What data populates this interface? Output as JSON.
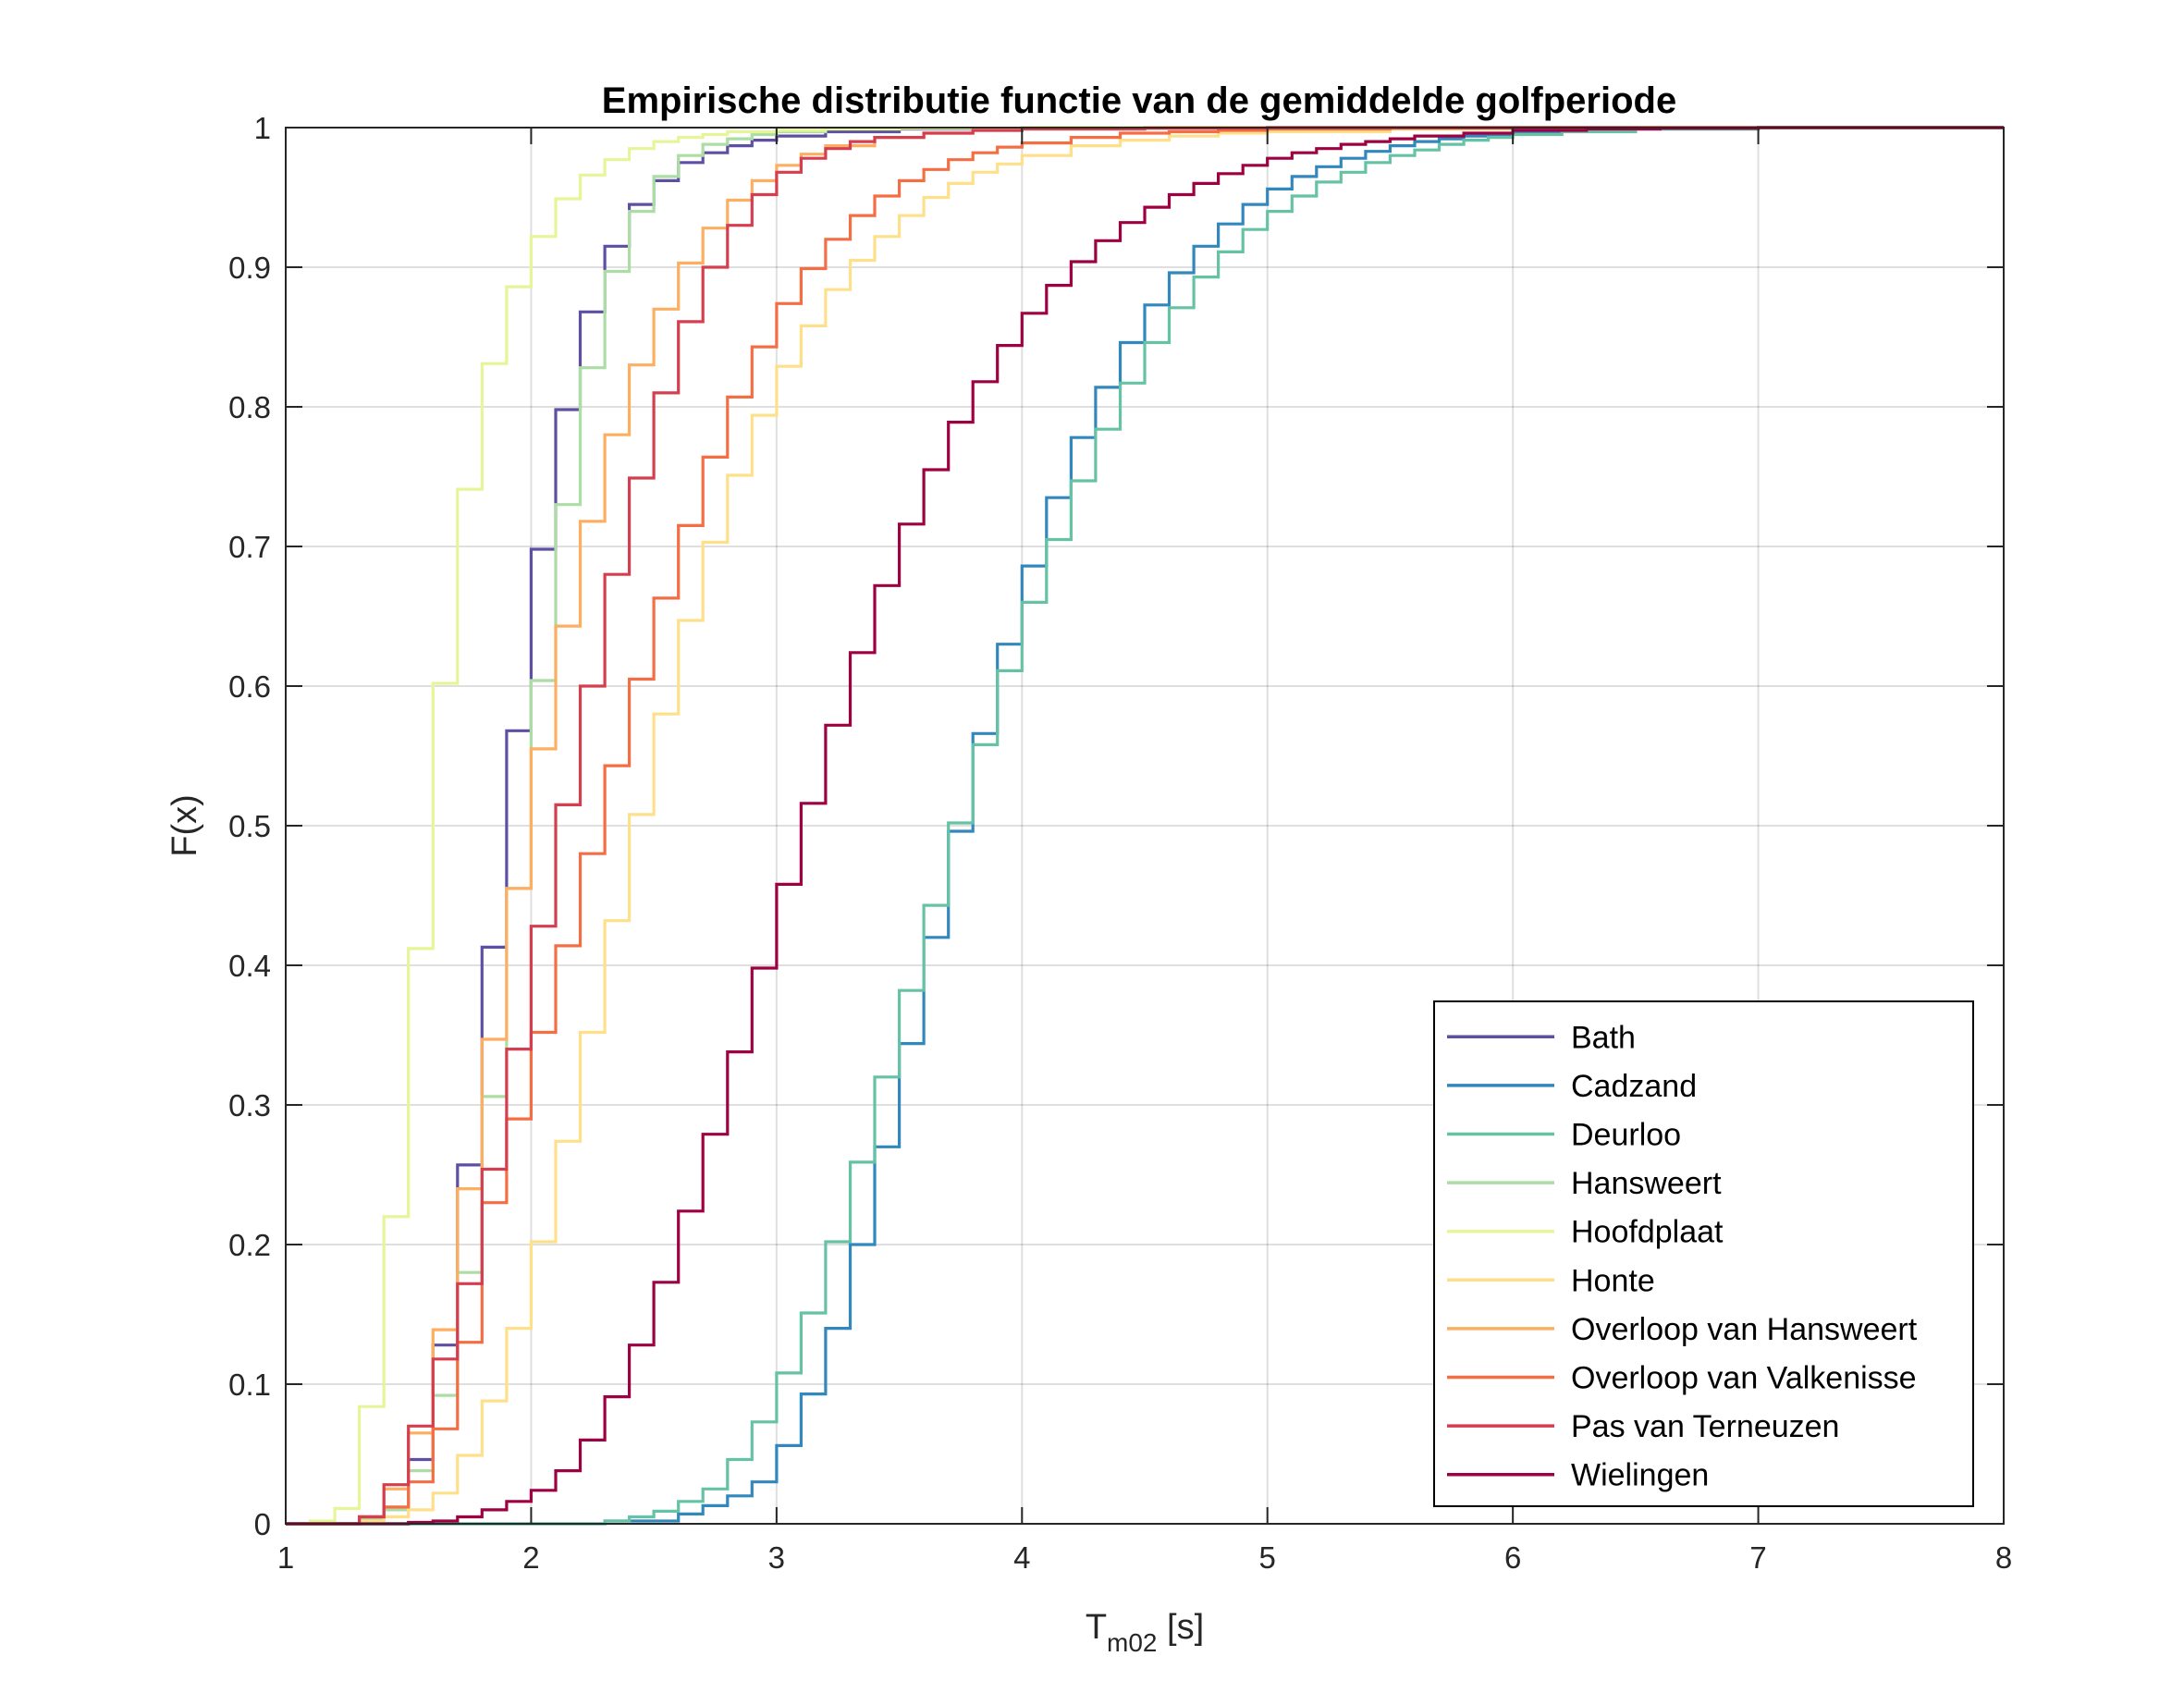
{
  "chart_data": {
    "type": "line",
    "step": true,
    "title": "Empirische distributie functie van de gemiddelde golfperiode",
    "xlabel": {
      "main": "T",
      "subscript": "m02",
      "suffix": " [s]"
    },
    "ylabel": "F(x)",
    "xlim": [
      1,
      8
    ],
    "ylim": [
      0,
      1
    ],
    "xticks": [
      "1",
      "2",
      "3",
      "4",
      "5",
      "6",
      "7",
      "8"
    ],
    "yticks": [
      "0",
      "0.1",
      "0.2",
      "0.3",
      "0.4",
      "0.5",
      "0.6",
      "0.7",
      "0.8",
      "0.9",
      "1"
    ],
    "grid": true,
    "legend_position": "bottom-right",
    "colors": {
      "Bath": "#5e4fa2",
      "Cadzand": "#3288bd",
      "Deurloo": "#66c2a5",
      "Hansweert": "#abdda4",
      "Hoofdplaat": "#e6f598",
      "Honte": "#fee08b",
      "Overloop van Hansweert": "#fdae61",
      "Overloop van Valkenisse": "#f46d43",
      "Pas van Terneuzen": "#d53e4f",
      "Wielingen": "#9e0142"
    },
    "series": [
      {
        "name": "Bath",
        "x": [
          1.0,
          1.3,
          1.4,
          1.5,
          1.6,
          1.7,
          1.8,
          1.9,
          2.0,
          2.1,
          2.2,
          2.3,
          2.4,
          2.5,
          2.6,
          2.7,
          2.8,
          2.9,
          3.0,
          3.2,
          3.5,
          4.0,
          8.0
        ],
        "y": [
          0,
          0.005,
          0.01,
          0.046,
          0.128,
          0.257,
          0.413,
          0.568,
          0.698,
          0.798,
          0.868,
          0.915,
          0.945,
          0.962,
          0.975,
          0.982,
          0.987,
          0.991,
          0.994,
          0.997,
          0.999,
          1.0,
          1.0
        ]
      },
      {
        "name": "Cadzand",
        "x": [
          1.0,
          2.0,
          2.3,
          2.6,
          2.7,
          2.8,
          2.9,
          3.0,
          3.1,
          3.2,
          3.3,
          3.4,
          3.5,
          3.6,
          3.7,
          3.8,
          3.9,
          4.0,
          4.1,
          4.2,
          4.3,
          4.4,
          4.5,
          4.6,
          4.7,
          4.8,
          4.9,
          5.0,
          5.1,
          5.2,
          5.3,
          5.4,
          5.5,
          5.6,
          5.7,
          5.8,
          5.9,
          6.0,
          6.2,
          6.5,
          7.0,
          8.0
        ],
        "y": [
          0,
          0,
          0.002,
          0.007,
          0.013,
          0.02,
          0.03,
          0.056,
          0.093,
          0.14,
          0.2,
          0.27,
          0.344,
          0.42,
          0.496,
          0.566,
          0.63,
          0.686,
          0.735,
          0.778,
          0.814,
          0.846,
          0.873,
          0.896,
          0.915,
          0.931,
          0.945,
          0.956,
          0.965,
          0.972,
          0.978,
          0.983,
          0.987,
          0.99,
          0.992,
          0.994,
          0.995,
          0.997,
          0.998,
          0.999,
          1.0,
          1.0
        ]
      },
      {
        "name": "Deurloo",
        "x": [
          1.0,
          2.0,
          2.3,
          2.4,
          2.5,
          2.6,
          2.7,
          2.8,
          2.9,
          3.0,
          3.1,
          3.2,
          3.3,
          3.4,
          3.5,
          3.6,
          3.7,
          3.8,
          3.9,
          4.0,
          4.1,
          4.2,
          4.3,
          4.4,
          4.5,
          4.6,
          4.7,
          4.8,
          4.9,
          5.0,
          5.1,
          5.2,
          5.3,
          5.4,
          5.5,
          5.6,
          5.7,
          5.8,
          5.9,
          6.0,
          6.2,
          6.5,
          7.0,
          8.0
        ],
        "y": [
          0,
          0,
          0.002,
          0.005,
          0.009,
          0.016,
          0.025,
          0.046,
          0.073,
          0.108,
          0.151,
          0.202,
          0.259,
          0.32,
          0.382,
          0.443,
          0.502,
          0.558,
          0.611,
          0.66,
          0.705,
          0.747,
          0.784,
          0.817,
          0.846,
          0.871,
          0.893,
          0.911,
          0.927,
          0.94,
          0.951,
          0.961,
          0.968,
          0.975,
          0.98,
          0.984,
          0.988,
          0.991,
          0.993,
          0.995,
          0.997,
          0.999,
          1.0,
          1.0
        ]
      },
      {
        "name": "Hansweert",
        "x": [
          1.0,
          1.3,
          1.4,
          1.5,
          1.6,
          1.7,
          1.8,
          1.9,
          2.0,
          2.1,
          2.2,
          2.3,
          2.4,
          2.5,
          2.6,
          2.7,
          2.8,
          2.9,
          3.0,
          3.2,
          3.5,
          4.0,
          8.0
        ],
        "y": [
          0,
          0.003,
          0.01,
          0.038,
          0.092,
          0.18,
          0.306,
          0.455,
          0.604,
          0.73,
          0.828,
          0.897,
          0.94,
          0.965,
          0.98,
          0.988,
          0.992,
          0.995,
          0.997,
          0.999,
          0.9995,
          1.0,
          1.0
        ]
      },
      {
        "name": "Hoofdplaat",
        "x": [
          1.0,
          1.1,
          1.2,
          1.3,
          1.4,
          1.5,
          1.6,
          1.7,
          1.8,
          1.9,
          2.0,
          2.1,
          2.2,
          2.3,
          2.4,
          2.5,
          2.6,
          2.7,
          2.8,
          3.0,
          3.2,
          3.5,
          4.0,
          8.0
        ],
        "y": [
          0,
          0.002,
          0.011,
          0.084,
          0.22,
          0.412,
          0.602,
          0.741,
          0.831,
          0.886,
          0.922,
          0.949,
          0.966,
          0.977,
          0.985,
          0.99,
          0.993,
          0.995,
          0.997,
          0.998,
          0.999,
          0.9995,
          1.0,
          1.0
        ]
      },
      {
        "name": "Honte",
        "x": [
          1.0,
          1.3,
          1.4,
          1.5,
          1.6,
          1.7,
          1.8,
          1.9,
          2.0,
          2.1,
          2.2,
          2.3,
          2.4,
          2.5,
          2.6,
          2.7,
          2.8,
          2.9,
          3.0,
          3.1,
          3.2,
          3.3,
          3.4,
          3.5,
          3.6,
          3.7,
          3.8,
          3.9,
          4.0,
          4.2,
          4.4,
          4.6,
          4.8,
          5.0,
          5.5,
          6.0,
          8.0
        ],
        "y": [
          0,
          0.002,
          0.005,
          0.01,
          0.022,
          0.049,
          0.088,
          0.14,
          0.202,
          0.274,
          0.352,
          0.432,
          0.508,
          0.58,
          0.647,
          0.703,
          0.751,
          0.794,
          0.829,
          0.858,
          0.884,
          0.905,
          0.922,
          0.937,
          0.95,
          0.96,
          0.968,
          0.974,
          0.98,
          0.987,
          0.991,
          0.994,
          0.996,
          0.997,
          0.999,
          1.0,
          1.0
        ]
      },
      {
        "name": "Overloop van Hansweert",
        "x": [
          1.0,
          1.3,
          1.4,
          1.5,
          1.6,
          1.7,
          1.8,
          1.9,
          2.0,
          2.1,
          2.2,
          2.3,
          2.4,
          2.5,
          2.6,
          2.7,
          2.8,
          2.9,
          3.0,
          3.1,
          3.2,
          3.4,
          3.6,
          3.8,
          4.0,
          4.5,
          8.0
        ],
        "y": [
          0,
          0.005,
          0.025,
          0.065,
          0.139,
          0.24,
          0.347,
          0.455,
          0.555,
          0.643,
          0.718,
          0.78,
          0.83,
          0.87,
          0.903,
          0.928,
          0.948,
          0.962,
          0.973,
          0.981,
          0.987,
          0.993,
          0.996,
          0.998,
          0.999,
          1.0,
          1.0
        ]
      },
      {
        "name": "Overloop van Valkenisse",
        "x": [
          1.0,
          1.3,
          1.4,
          1.5,
          1.6,
          1.7,
          1.8,
          1.9,
          2.0,
          2.1,
          2.2,
          2.3,
          2.4,
          2.5,
          2.6,
          2.7,
          2.8,
          2.9,
          3.0,
          3.1,
          3.2,
          3.3,
          3.4,
          3.5,
          3.6,
          3.7,
          3.8,
          3.9,
          4.0,
          4.2,
          4.4,
          4.6,
          4.8,
          5.0,
          5.5,
          6.0,
          8.0
        ],
        "y": [
          0,
          0.005,
          0.012,
          0.03,
          0.068,
          0.13,
          0.23,
          0.29,
          0.352,
          0.414,
          0.48,
          0.543,
          0.605,
          0.663,
          0.715,
          0.764,
          0.807,
          0.843,
          0.874,
          0.899,
          0.92,
          0.937,
          0.951,
          0.962,
          0.97,
          0.977,
          0.982,
          0.986,
          0.989,
          0.993,
          0.996,
          0.997,
          0.998,
          0.999,
          0.9995,
          1.0,
          1.0
        ]
      },
      {
        "name": "Pas van Terneuzen",
        "x": [
          1.0,
          1.3,
          1.4,
          1.5,
          1.6,
          1.7,
          1.8,
          1.9,
          2.0,
          2.1,
          2.2,
          2.3,
          2.4,
          2.5,
          2.6,
          2.7,
          2.8,
          2.9,
          3.0,
          3.1,
          3.2,
          3.3,
          3.4,
          3.6,
          3.8,
          4.0,
          4.5,
          5.0,
          8.0
        ],
        "y": [
          0,
          0.005,
          0.028,
          0.07,
          0.118,
          0.172,
          0.254,
          0.34,
          0.428,
          0.515,
          0.6,
          0.68,
          0.749,
          0.81,
          0.861,
          0.9,
          0.93,
          0.952,
          0.968,
          0.978,
          0.985,
          0.99,
          0.993,
          0.996,
          0.998,
          0.999,
          0.9995,
          1.0,
          1.0
        ]
      },
      {
        "name": "Wielingen",
        "x": [
          1.0,
          1.5,
          1.6,
          1.7,
          1.8,
          1.9,
          2.0,
          2.1,
          2.2,
          2.3,
          2.4,
          2.5,
          2.6,
          2.7,
          2.8,
          2.9,
          3.0,
          3.1,
          3.2,
          3.3,
          3.4,
          3.5,
          3.6,
          3.7,
          3.8,
          3.9,
          4.0,
          4.1,
          4.2,
          4.3,
          4.4,
          4.5,
          4.6,
          4.7,
          4.8,
          4.9,
          5.0,
          5.1,
          5.2,
          5.3,
          5.4,
          5.5,
          5.6,
          5.8,
          6.0,
          6.3,
          6.6,
          7.0,
          8.0
        ],
        "y": [
          0,
          0.001,
          0.002,
          0.005,
          0.01,
          0.016,
          0.024,
          0.038,
          0.06,
          0.091,
          0.128,
          0.173,
          0.224,
          0.279,
          0.338,
          0.398,
          0.458,
          0.516,
          0.572,
          0.624,
          0.672,
          0.716,
          0.755,
          0.789,
          0.818,
          0.844,
          0.867,
          0.887,
          0.904,
          0.919,
          0.932,
          0.943,
          0.952,
          0.96,
          0.967,
          0.973,
          0.978,
          0.982,
          0.985,
          0.988,
          0.99,
          0.992,
          0.994,
          0.996,
          0.998,
          0.999,
          0.9995,
          1.0,
          1.0
        ]
      }
    ]
  }
}
